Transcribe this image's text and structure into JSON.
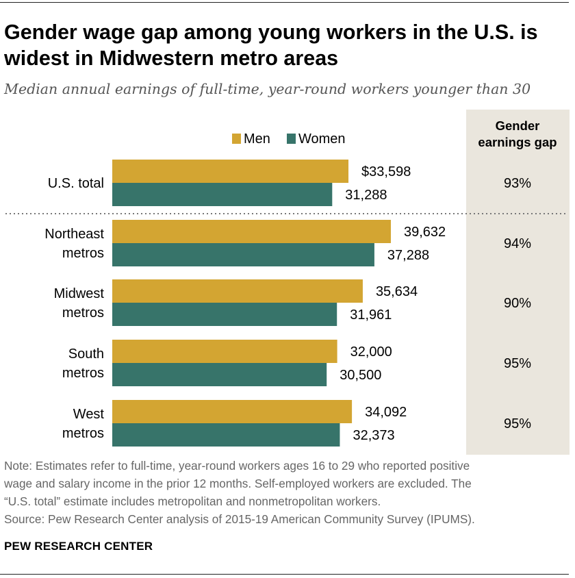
{
  "title": "Gender wage gap among young workers in the U.S. is widest in Midwestern metro areas",
  "subtitle": "Median annual earnings of full-time, year-round workers younger than 30",
  "chart_data": {
    "type": "bar",
    "orientation": "horizontal",
    "categories": [
      "U.S. total",
      "Northeast metros",
      "Midwest metros",
      "South metros",
      "West metros"
    ],
    "category_lines": [
      [
        "U.S. total"
      ],
      [
        "Northeast",
        "metros"
      ],
      [
        "Midwest",
        "metros"
      ],
      [
        "South",
        "metros"
      ],
      [
        "West",
        "metros"
      ]
    ],
    "series": [
      {
        "name": "Men",
        "color": "#d3a532",
        "values": [
          33598,
          39632,
          35634,
          32000,
          34092
        ],
        "labels": [
          "$33,598",
          "39,632",
          "35,634",
          "32,000",
          "34,092"
        ]
      },
      {
        "name": "Women",
        "color": "#37746a",
        "values": [
          31288,
          37288,
          31961,
          30500,
          32373
        ],
        "labels": [
          "31,288",
          "37,288",
          "31,961",
          "30,500",
          "32,373"
        ]
      }
    ],
    "gap_column": {
      "header": [
        "Gender",
        "earnings gap"
      ],
      "values": [
        "93%",
        "94%",
        "90%",
        "95%",
        "95%"
      ],
      "background": "#eae6dd"
    },
    "legend_position": "top",
    "grid": false
  },
  "note_lines": [
    "Note: Estimates refer to full-time, year-round workers ages 16 to 29 who reported positive",
    "wage and salary income in the prior 12 months. Self-employed workers are excluded. The",
    "“U.S. total” estimate includes metropolitan and nonmetropolitan workers."
  ],
  "source": "Source: Pew Research Center analysis of 2015-19 American Community Survey (IPUMS).",
  "brand": "PEW RESEARCH CENTER"
}
